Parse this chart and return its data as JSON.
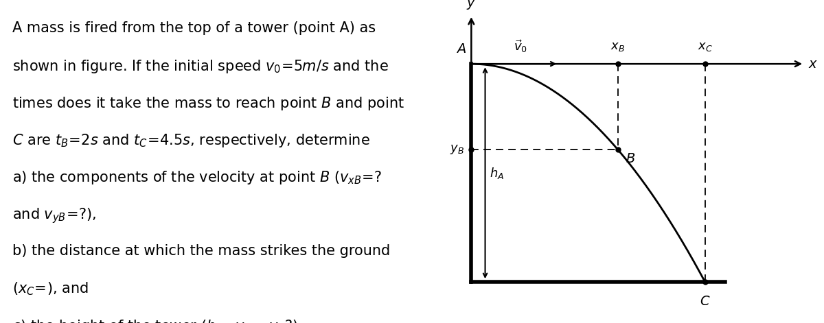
{
  "fig_width": 12.0,
  "fig_height": 4.71,
  "dpi": 100,
  "fs_main": 15,
  "fs_diagram": 13,
  "lh": 0.115,
  "text_color": "#000000",
  "bg_color": "#ffffff",
  "orig_x": 1.6,
  "orig_y": 8.0,
  "ground_y": 0.4,
  "B_x": 5.3,
  "C_x": 7.5,
  "v0_end_x": 3.8,
  "xlim": [
    0,
    10.5
  ],
  "ylim": [
    -0.8,
    10.0
  ]
}
